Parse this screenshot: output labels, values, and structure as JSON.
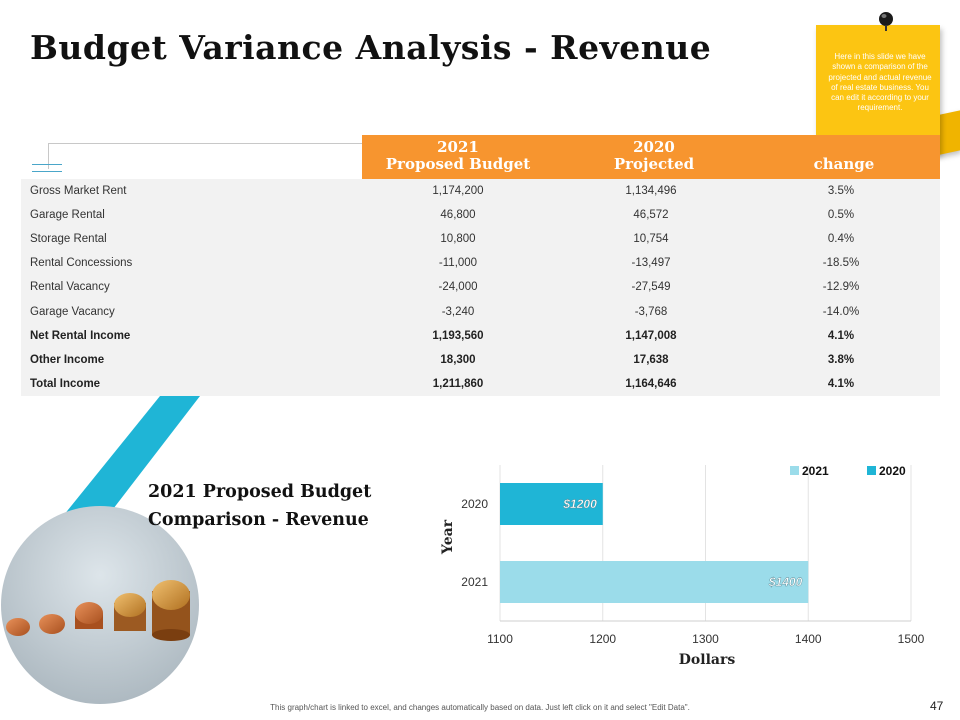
{
  "title": "Budget Variance Analysis - Revenue",
  "note": {
    "text": "Here in this slide we have shown a comparison of the projected and actual revenue of real estate business. You can edit it according to your requirement."
  },
  "table": {
    "headers": [
      {
        "line1": "2021",
        "line2": "Proposed Budget"
      },
      {
        "line1": "2020",
        "line2": "Projected"
      },
      {
        "line1": "",
        "line2": "change"
      }
    ],
    "rows": [
      {
        "label": "Gross Market Rent",
        "budget": "1,174,200",
        "projected": "1,134,496",
        "change": "3.5%",
        "bold": false
      },
      {
        "label": "Garage Rental",
        "budget": "46,800",
        "projected": "46,572",
        "change": "0.5%",
        "bold": false
      },
      {
        "label": "Storage Rental",
        "budget": "10,800",
        "projected": "10,754",
        "change": "0.4%",
        "bold": false
      },
      {
        "label": "Rental Concessions",
        "budget": "-11,000",
        "projected": "-13,497",
        "change": "-18.5%",
        "bold": false
      },
      {
        "label": "Rental Vacancy",
        "budget": "-24,000",
        "projected": "-27,549",
        "change": "-12.9%",
        "bold": false
      },
      {
        "label": "Garage Vacancy",
        "budget": "-3,240",
        "projected": "-3,768",
        "change": "-14.0%",
        "bold": false
      },
      {
        "label": "Net Rental Income",
        "budget": "1,193,560",
        "projected": "1,147,008",
        "change": "4.1%",
        "bold": true
      },
      {
        "label": "Other Income",
        "budget": "18,300",
        "projected": "17,638",
        "change": "3.8%",
        "bold": true
      },
      {
        "label": "Total Income",
        "budget": "1,211,860",
        "projected": "1,164,646",
        "change": "4.1%",
        "bold": true
      }
    ]
  },
  "chart_heading": {
    "line1": "2021 Proposed Budget",
    "line2": "Comparison - Revenue"
  },
  "chart_data": {
    "type": "bar",
    "orientation": "horizontal",
    "categories": [
      "2020",
      "2021"
    ],
    "series": [
      {
        "name": "2021",
        "color": "#9bdcea",
        "values": [
          null,
          1400
        ],
        "labels": [
          null,
          "$1400"
        ]
      },
      {
        "name": "2020",
        "color": "#1fb5d6",
        "values": [
          1200,
          null
        ],
        "labels": [
          "$1200",
          null
        ]
      }
    ],
    "xlim": [
      1100,
      1500
    ],
    "xticks": [
      1100,
      1200,
      1300,
      1400,
      1500
    ],
    "xlabel": "Dollars",
    "ylabel": "Year",
    "legend": "top-right"
  },
  "footer": "This graph/chart is linked to excel, and changes automatically based on data. Just left click on it and select \"Edit Data\".",
  "page_number": "47"
}
